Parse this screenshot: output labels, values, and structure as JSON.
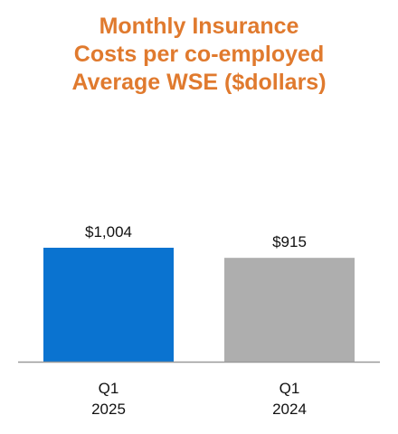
{
  "chart_data": {
    "type": "bar",
    "title_lines": [
      "Monthly Insurance",
      "Costs per co-employed",
      "Average WSE ($dollars)"
    ],
    "categories": [
      {
        "line1": "Q1",
        "line2": "2025"
      },
      {
        "line1": "Q1",
        "line2": "2024"
      }
    ],
    "values": [
      1004,
      915
    ],
    "value_labels": [
      "$1,004",
      "$915"
    ],
    "colors": [
      "#0A73D0",
      "#AEAEAE"
    ],
    "title_color": "#E07A2E",
    "axis_color": "#9A9A9A",
    "ylim": [
      0,
      1004
    ],
    "grid": false,
    "legend": "none"
  }
}
